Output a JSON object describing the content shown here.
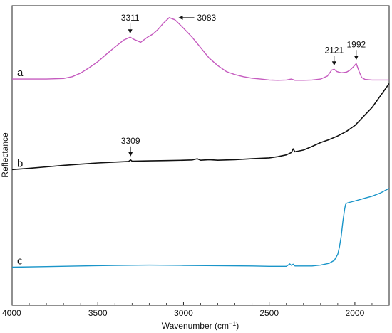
{
  "chart_data": {
    "type": "line",
    "xlabel": "Wavenumber (cm",
    "xlabel_sup": "−1",
    "xlabel_suffix": ")",
    "ylabel": "Reflectance",
    "xlim": [
      4000,
      1800
    ],
    "ylim": [
      0,
      1
    ],
    "xticks": [
      4000,
      3500,
      3000,
      2500,
      2000
    ],
    "grid": false,
    "legend": "none",
    "series": [
      {
        "name": "a",
        "color": "#c55bbf",
        "x": [
          4000,
          3800,
          3700,
          3650,
          3600,
          3550,
          3500,
          3450,
          3400,
          3350,
          3311,
          3290,
          3250,
          3210,
          3180,
          3150,
          3120,
          3083,
          3050,
          3000,
          2950,
          2900,
          2850,
          2800,
          2750,
          2700,
          2650,
          2600,
          2550,
          2500,
          2450,
          2400,
          2370,
          2350,
          2300,
          2250,
          2200,
          2160,
          2135,
          2121,
          2105,
          2080,
          2050,
          2030,
          2010,
          1992,
          1975,
          1960,
          1940,
          1900,
          1850,
          1800
        ],
        "y": [
          0.755,
          0.755,
          0.757,
          0.763,
          0.775,
          0.793,
          0.813,
          0.838,
          0.862,
          0.885,
          0.895,
          0.888,
          0.878,
          0.895,
          0.905,
          0.92,
          0.94,
          0.96,
          0.953,
          0.925,
          0.895,
          0.86,
          0.825,
          0.8,
          0.78,
          0.77,
          0.763,
          0.758,
          0.755,
          0.752,
          0.751,
          0.752,
          0.755,
          0.751,
          0.751,
          0.752,
          0.755,
          0.765,
          0.785,
          0.788,
          0.78,
          0.776,
          0.778,
          0.784,
          0.795,
          0.807,
          0.78,
          0.76,
          0.754,
          0.752,
          0.752,
          0.752
        ]
      },
      {
        "name": "b",
        "color": "#111111",
        "x": [
          4000,
          3900,
          3800,
          3700,
          3600,
          3500,
          3400,
          3320,
          3309,
          3300,
          3200,
          3100,
          3000,
          2950,
          2920,
          2900,
          2850,
          2800,
          2700,
          2600,
          2500,
          2450,
          2400,
          2370,
          2360,
          2350,
          2300,
          2250,
          2200,
          2150,
          2100,
          2050,
          2000,
          1950,
          1900,
          1850,
          1800
        ],
        "y": [
          0.453,
          0.457,
          0.462,
          0.467,
          0.471,
          0.475,
          0.478,
          0.48,
          0.485,
          0.481,
          0.482,
          0.483,
          0.484,
          0.485,
          0.489,
          0.484,
          0.486,
          0.484,
          0.486,
          0.489,
          0.492,
          0.496,
          0.502,
          0.51,
          0.522,
          0.512,
          0.518,
          0.53,
          0.543,
          0.553,
          0.565,
          0.58,
          0.6,
          0.63,
          0.66,
          0.7,
          0.74
        ]
      },
      {
        "name": "c",
        "color": "#1a95c9",
        "x": [
          4000,
          3800,
          3600,
          3400,
          3200,
          3000,
          2800,
          2600,
          2500,
          2400,
          2380,
          2370,
          2360,
          2350,
          2300,
          2250,
          2200,
          2150,
          2120,
          2100,
          2090,
          2080,
          2070,
          2060,
          2055,
          2050,
          2040,
          2000,
          1950,
          1900,
          1850,
          1800
        ],
        "y": [
          0.127,
          0.129,
          0.131,
          0.133,
          0.134,
          0.133,
          0.132,
          0.131,
          0.13,
          0.13,
          0.138,
          0.133,
          0.137,
          0.131,
          0.131,
          0.131,
          0.134,
          0.14,
          0.15,
          0.17,
          0.195,
          0.23,
          0.28,
          0.32,
          0.335,
          0.34,
          0.342,
          0.348,
          0.356,
          0.364,
          0.375,
          0.39
        ]
      }
    ],
    "annotations": [
      {
        "text": "3311",
        "series": "a",
        "x": 3311
      },
      {
        "text": "3083",
        "series": "a",
        "x": 3083
      },
      {
        "text": "2121",
        "series": "a",
        "x": 2121
      },
      {
        "text": "1992",
        "series": "a",
        "x": 1992
      },
      {
        "text": "3309",
        "series": "b",
        "x": 3309
      }
    ]
  }
}
